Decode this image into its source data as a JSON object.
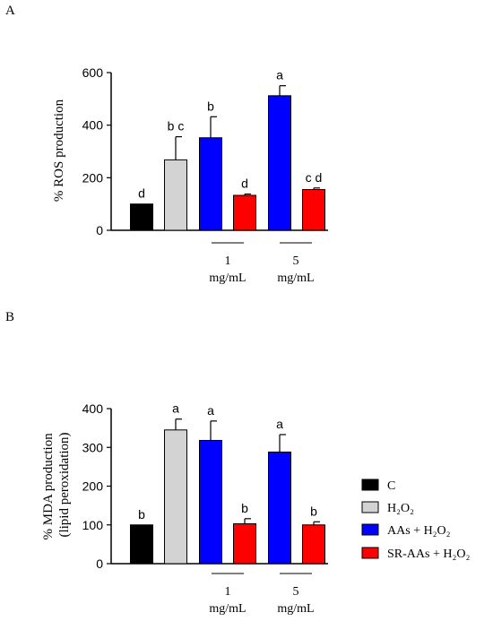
{
  "panels": [
    {
      "panel_label": "A",
      "group_labels": [
        {
          "value": "1",
          "unit": "mg/mL"
        },
        {
          "value": "5",
          "unit": "mg/mL"
        }
      ]
    },
    {
      "panel_label": "B",
      "group_labels": [
        {
          "value": "1",
          "unit": "mg/mL"
        },
        {
          "value": "5",
          "unit": "mg/mL"
        }
      ]
    }
  ],
  "legend": {
    "items": [
      {
        "label": "C",
        "color": "#000000"
      },
      {
        "label": "H₂O₂",
        "color": "#d3d3d3"
      },
      {
        "label": "AAs + H₂O₂",
        "color": "#0000ff"
      },
      {
        "label": "SR-AAs + H₂O₂",
        "color": "#ff0000"
      }
    ]
  },
  "chart_data": [
    {
      "type": "bar",
      "title": "",
      "ylabel": "% ROS production",
      "xlabel": "",
      "ylim": [
        0,
        600
      ],
      "yticks": [
        0,
        200,
        400,
        600
      ],
      "grid": false,
      "categories": [
        "C",
        "H₂O₂",
        "AAs + H₂O₂ (1 mg/mL)",
        "SR-AAs + H₂O₂ (1 mg/mL)",
        "AAs + H₂O₂ (5 mg/mL)",
        "SR-AAs + H₂O₂ (5 mg/mL)"
      ],
      "values": [
        100,
        268,
        352,
        133,
        512,
        155
      ],
      "errors": [
        0,
        88,
        80,
        5,
        38,
        6
      ],
      "colors": [
        "#000000",
        "#d3d3d3",
        "#0000ff",
        "#ff0000",
        "#0000ff",
        "#ff0000"
      ],
      "significance_letters": [
        "d",
        "b c",
        "b",
        "d",
        "a",
        "c d"
      ]
    },
    {
      "type": "bar",
      "title": "",
      "ylabel": "% MDA production (lipid peroxidation)",
      "xlabel": "",
      "ylim": [
        0,
        400
      ],
      "yticks": [
        0,
        100,
        200,
        300,
        400
      ],
      "grid": false,
      "categories": [
        "C",
        "H₂O₂",
        "AAs + H₂O₂ (1 mg/mL)",
        "SR-AAs + H₂O₂ (1 mg/mL)",
        "AAs + H₂O₂ (5 mg/mL)",
        "SR-AAs + H₂O₂ (5 mg/mL)"
      ],
      "values": [
        100,
        345,
        318,
        103,
        288,
        100
      ],
      "errors": [
        0,
        28,
        50,
        13,
        45,
        8
      ],
      "colors": [
        "#000000",
        "#d3d3d3",
        "#0000ff",
        "#ff0000",
        "#0000ff",
        "#ff0000"
      ],
      "significance_letters": [
        "b",
        "a",
        "a",
        "b",
        "a",
        "b"
      ],
      "legend_position": "right"
    }
  ]
}
